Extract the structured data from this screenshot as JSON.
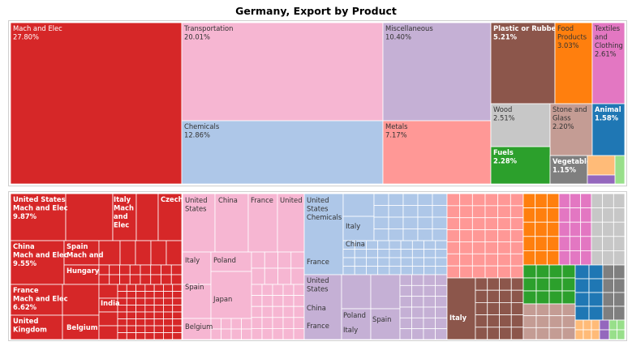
{
  "page": {
    "title": "Germany, Export by Product"
  },
  "colors": {
    "mach_elec": "#d62728",
    "transportation": "#f6b6d2",
    "miscellaneous": "#c5b0d5",
    "chemicals": "#aec7e8",
    "metals": "#ff9896",
    "plastic": "#8c564b",
    "food": "#ff7f0e",
    "textiles": "#e377c2",
    "wood": "#c7c7c7",
    "stone": "#c49c94",
    "animal": "#1f77b4",
    "fuels": "#2ca02c",
    "vegetable": "#7f7f7f",
    "other_orange": "#ffbb78",
    "other_purple": "#9467bd",
    "other_green": "#98df8a"
  },
  "chart_data": [
    {
      "type": "treemap",
      "title": "Germany, Export by Product",
      "unit": "%",
      "categories": [
        {
          "name": "Mach and Elec",
          "value": 27.8,
          "value_label": "27.80%"
        },
        {
          "name": "Transportation",
          "value": 20.01,
          "value_label": "20.01%"
        },
        {
          "name": "Chemicals",
          "value": 12.86,
          "value_label": "12.86%"
        },
        {
          "name": "Miscellaneous",
          "value": 10.4,
          "value_label": "10.40%"
        },
        {
          "name": "Metals",
          "value": 7.17,
          "value_label": "7.17%"
        },
        {
          "name": "Plastic or Rubber",
          "value": 5.21,
          "value_label": "5.21%"
        },
        {
          "name": "Food Products",
          "value": 3.03,
          "value_label": "3.03%"
        },
        {
          "name": "Textiles and Clothing",
          "value": 2.61,
          "value_label": "2.61%"
        },
        {
          "name": "Wood",
          "value": 2.51,
          "value_label": "2.51%"
        },
        {
          "name": "Stone and Glass",
          "value": 2.2,
          "value_label": "2.20%"
        },
        {
          "name": "Animal",
          "value": 1.58,
          "value_label": "1.58%"
        },
        {
          "name": "Fuels",
          "value": 2.28,
          "value_label": "2.28%"
        },
        {
          "name": "Vegetable",
          "value": 1.15,
          "value_label": "1.15%"
        }
      ]
    },
    {
      "type": "treemap",
      "title": "",
      "mach_elec_partners": [
        {
          "label": "United States Mach and Elec",
          "value": 9.87,
          "value_label": "9.87%"
        },
        {
          "label": "China Mach and Elec",
          "value": 9.55,
          "value_label": "9.55%"
        },
        {
          "label": "France Mach and Elec",
          "value": 6.62,
          "value_label": "6.62%"
        },
        {
          "label": "United Kingdom"
        },
        {
          "label": "Italy Mach and Elec"
        },
        {
          "label": "Czech"
        },
        {
          "label": "Spain Mach and"
        },
        {
          "label": "Hungary"
        },
        {
          "label": "India"
        },
        {
          "label": "Belgium"
        }
      ],
      "transportation_partners": [
        "United States",
        "China",
        "France",
        "United",
        "Italy",
        "Poland",
        "Spain",
        "Japan",
        "Belgium"
      ],
      "chemicals_partners": [
        "United States Chemicals",
        "Italy",
        "China",
        "France"
      ],
      "miscellaneous_partners": [
        "United States",
        "China",
        "Poland",
        "Spain",
        "France",
        "Italy"
      ],
      "plastic_partners": [
        "Italy"
      ]
    }
  ]
}
